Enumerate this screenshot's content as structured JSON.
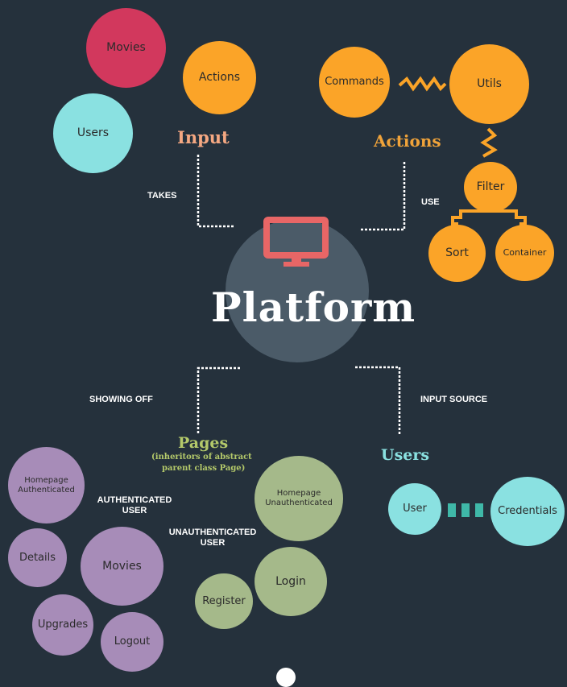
{
  "center": {
    "title": "Platform",
    "icon": "monitor-icon"
  },
  "input_group": {
    "heading": "Input",
    "connector": "TAKES",
    "nodes": [
      "Movies",
      "Actions",
      "Users"
    ]
  },
  "actions_group": {
    "heading": "Actions",
    "connector": "USE",
    "nodes": [
      "Commands",
      "Utils",
      "Filter",
      "Sort",
      "Container"
    ]
  },
  "pages_group": {
    "heading": "Pages",
    "subheading_line1": "(inheritors of abstract",
    "subheading_line2": "parent class Page)",
    "connector": "SHOWING OFF",
    "authenticated_label_line1": "AUTHENTICATED",
    "authenticated_label_line2": "USER",
    "unauthenticated_label_line1": "UNAUTHENTICATED",
    "unauthenticated_label_line2": "USER",
    "authenticated_nodes": [
      {
        "line1": "Homepage",
        "line2": "Authenticated"
      },
      {
        "line1": "Details"
      },
      {
        "line1": "Movies"
      },
      {
        "line1": "Upgrades"
      },
      {
        "line1": "Logout"
      }
    ],
    "unauthenticated_nodes": [
      {
        "line1": "Homepage",
        "line2": "Unauthenticated"
      },
      {
        "line1": "Login"
      },
      {
        "line1": "Register"
      }
    ]
  },
  "users_group": {
    "heading": "Users",
    "connector": "INPUT SOURCE",
    "nodes": [
      "User",
      "Credentials"
    ]
  },
  "colors": {
    "background": "#25313c",
    "movies_red": "#d2385d",
    "orange": "#fba428",
    "cyan": "#8ae1e1",
    "purple": "#a78cb8",
    "green": "#a5b98a",
    "center_circle": "#4b5b68",
    "monitor": "#e86666",
    "input_heading": "#f5a882",
    "actions_heading": "#f0a33a",
    "pages_heading": "#b4c96a",
    "users_heading": "#8ae1e1",
    "teal_bar": "#3fb8a8"
  }
}
